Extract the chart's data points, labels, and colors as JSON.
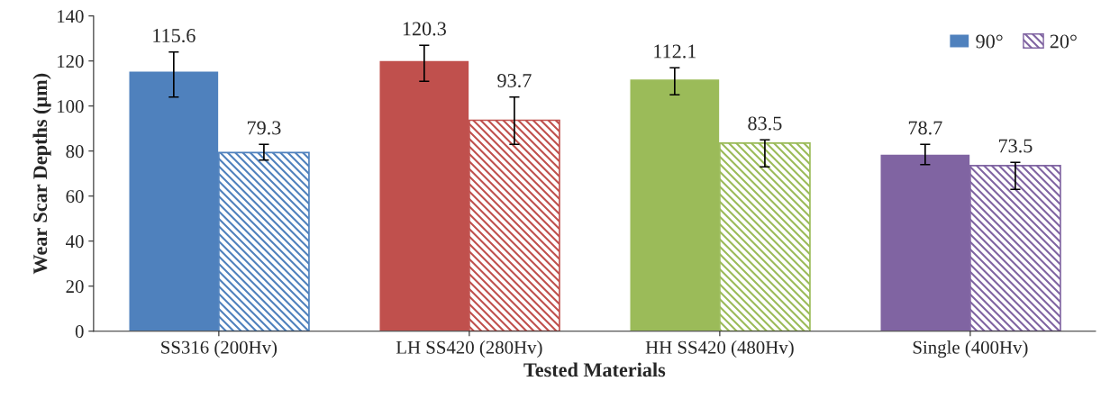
{
  "chart_data": {
    "type": "bar",
    "xlabel": "Tested Materials",
    "ylabel": "Wear Scar Depths (µm)",
    "categories": [
      "SS316 (200Hv)",
      "LH SS420 (280Hv)",
      "HH SS420 (480Hv)",
      "Single (400Hv)"
    ],
    "series": [
      {
        "name": "90°",
        "color": "#4f81bd",
        "colors": [
          "#4f81bd",
          "#c0504d",
          "#9bbb59",
          "#8064a2"
        ],
        "values": [
          115.6,
          120.3,
          112.1,
          78.7
        ],
        "errors": [
          [
            104,
            124
          ],
          [
            111,
            127
          ],
          [
            105,
            117
          ],
          [
            74,
            83
          ]
        ]
      },
      {
        "name": "20°",
        "color": "#8064a2",
        "colors": [
          "#4f81bd",
          "#c0504d",
          "#9bbb59",
          "#8064a2"
        ],
        "values": [
          79.3,
          93.7,
          83.5,
          73.5
        ],
        "errors": [
          [
            76,
            83
          ],
          [
            83,
            104
          ],
          [
            73,
            85
          ],
          [
            63,
            75
          ]
        ]
      }
    ],
    "ylim": [
      0,
      140
    ],
    "yticks": [
      0,
      20,
      40,
      60,
      80,
      100,
      120,
      140
    ],
    "grid": false,
    "legend": "top right",
    "data_labels": true
  }
}
